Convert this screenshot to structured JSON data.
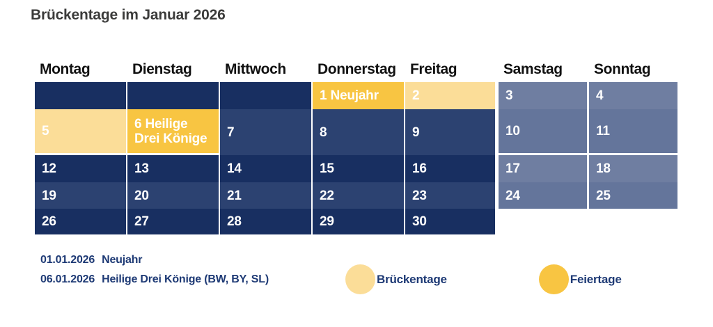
{
  "title": "Brückentage im Januar 2026",
  "colors": {
    "navy_dark": "#182F61",
    "navy_light": "#2C4271",
    "slate_light": "#6F7EA1",
    "slate_dark": "#64759B",
    "holiday_yellow": "#F8C542",
    "bridge_yellow": "#FBDD98",
    "text_navy": "#1E3A75",
    "header_black": "#111111",
    "title_gray": "#3B3B3A"
  },
  "weekday_headers": [
    "Montag",
    "Dienstag",
    "Mittwoch",
    "Donnerstag",
    "Freitag",
    "Samstag",
    "Sonntag"
  ],
  "weeks": [
    [
      {
        "text": ""
      },
      {
        "text": ""
      },
      {
        "text": ""
      },
      {
        "text": "1 Neujahr",
        "type": "holiday"
      },
      {
        "text": "2",
        "type": "bridge"
      },
      {
        "text": "3"
      },
      {
        "text": "4"
      }
    ],
    [
      {
        "text": "5",
        "type": "bridge"
      },
      {
        "text": "6 Heilige Drei Könige",
        "type": "holiday"
      },
      {
        "text": "7"
      },
      {
        "text": "8"
      },
      {
        "text": "9"
      },
      {
        "text": "10"
      },
      {
        "text": "11"
      }
    ],
    [
      {
        "text": "12"
      },
      {
        "text": "13"
      },
      {
        "text": "14"
      },
      {
        "text": "15"
      },
      {
        "text": "16"
      },
      {
        "text": "17"
      },
      {
        "text": "18"
      }
    ],
    [
      {
        "text": "19"
      },
      {
        "text": "20"
      },
      {
        "text": "21"
      },
      {
        "text": "22"
      },
      {
        "text": "23"
      },
      {
        "text": "24"
      },
      {
        "text": "25"
      }
    ],
    [
      {
        "text": "26"
      },
      {
        "text": "27"
      },
      {
        "text": "28"
      },
      {
        "text": "29"
      },
      {
        "text": "30"
      },
      {
        "absent": true
      },
      {
        "absent": true
      }
    ]
  ],
  "notes": [
    {
      "date": "01.01.2026",
      "label": "Neujahr"
    },
    {
      "date": "06.01.2026",
      "label": "Heilige Drei Könige (BW, BY, SL)"
    }
  ],
  "legend": [
    {
      "label": "Brückentage",
      "type": "bridge"
    },
    {
      "label": "Feiertage",
      "type": "holiday"
    }
  ]
}
